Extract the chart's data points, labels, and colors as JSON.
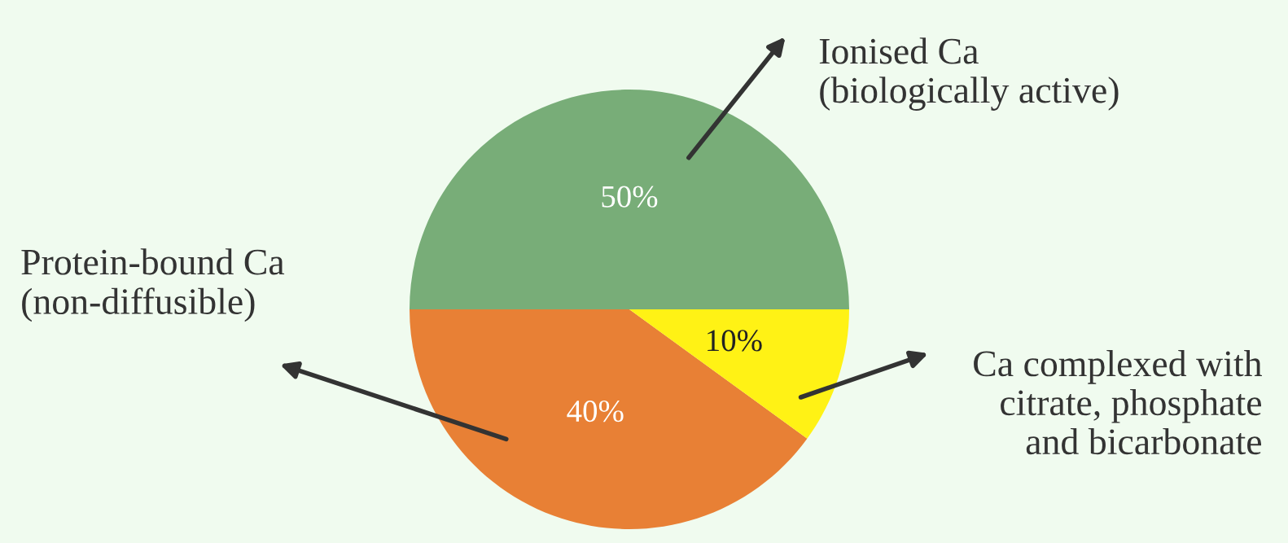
{
  "chart_data": {
    "type": "pie",
    "categories": [
      "Ionised Ca\n(biologically active)",
      "Protein-bound Ca\n(non-diffusible)",
      "Ca complexed with\ncitrate, phosphate\nand bicarbonate"
    ],
    "values": [
      50,
      40,
      10
    ],
    "colors": [
      "#78ad78",
      "#e88035",
      "#fff215"
    ],
    "value_labels": [
      "50%",
      "40%",
      "10%"
    ],
    "legend": false
  }
}
